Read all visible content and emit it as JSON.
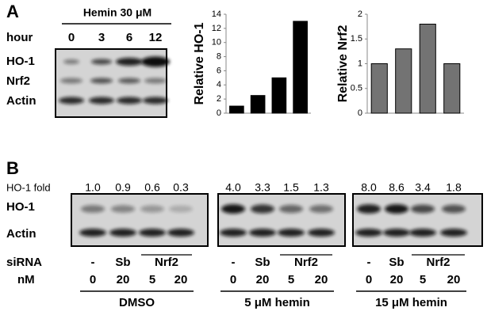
{
  "panel_a": {
    "label": "A",
    "treatment": "Hemin 30 μM",
    "time_label": "hour",
    "times": [
      "0",
      "3",
      "6",
      "12"
    ],
    "rows": [
      "HO-1",
      "Nrf2",
      "Actin"
    ]
  },
  "chart_data": [
    {
      "type": "bar",
      "y_label": "Relative  HO-1",
      "categories": [
        null,
        null,
        null,
        null
      ],
      "values": [
        1,
        2.5,
        5,
        13
      ],
      "color": "#000000",
      "ylim": [
        0,
        14
      ],
      "yticks": [
        0,
        2,
        4,
        6,
        8,
        10,
        12,
        14
      ]
    },
    {
      "type": "bar",
      "y_label": "Relative Nrf2",
      "categories": [
        null,
        null,
        null,
        null
      ],
      "values": [
        1,
        1.3,
        1.8,
        1
      ],
      "color": "#737373",
      "ylim": [
        0,
        2
      ],
      "yticks": [
        0,
        0.5,
        1,
        1.5,
        2
      ]
    }
  ],
  "panel_b": {
    "label": "B",
    "fold_label": "HO-1 fold",
    "rows": [
      "HO-1",
      "Actin"
    ],
    "sirna_label": "siRNA",
    "nm_label": "nM",
    "groups": [
      {
        "name": "DMSO",
        "folds": [
          "1.0",
          "0.9",
          "0.6",
          "0.3"
        ],
        "sirna": [
          "-",
          "Sb",
          "Nrf2"
        ],
        "nm": [
          "0",
          "20",
          "5",
          "20"
        ]
      },
      {
        "name": "5 μM hemin",
        "folds": [
          "4.0",
          "3.3",
          "1.5",
          "1.3"
        ],
        "sirna": [
          "-",
          "Sb",
          "Nrf2"
        ],
        "nm": [
          "0",
          "20",
          "5",
          "20"
        ]
      },
      {
        "name": "15 μM hemin",
        "folds": [
          "8.0",
          "8.6",
          "3.4",
          "1.8"
        ],
        "sirna": [
          "-",
          "Sb",
          "Nrf2"
        ],
        "nm": [
          "0",
          "20",
          "5",
          "20"
        ]
      }
    ]
  }
}
